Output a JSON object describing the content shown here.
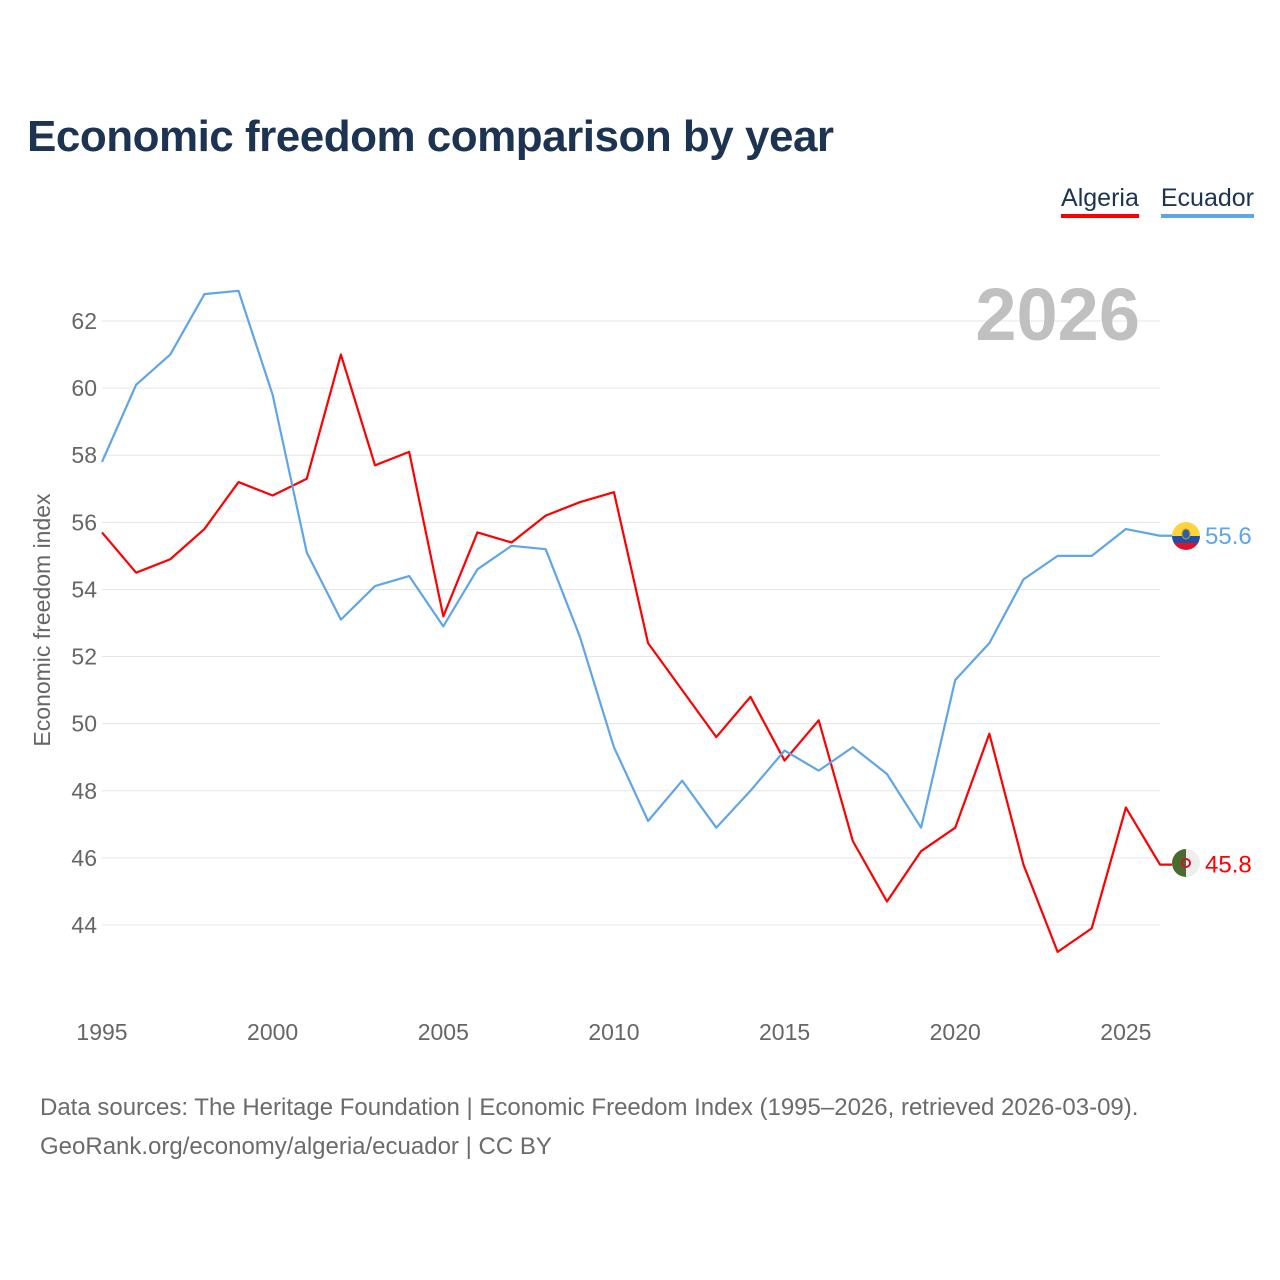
{
  "title": "Economic freedom comparison by year",
  "legend": [
    {
      "label": "Algeria",
      "color": "#ff0000"
    },
    {
      "label": "Ecuador",
      "color": "#60a5ea"
    }
  ],
  "year_watermark": "2026",
  "source_line1": "Data sources: The Heritage Foundation | Economic Freedom Index (1995–2026, retrieved 2026-03-09).",
  "source_line2": "GeoRank.org/economy/algeria/ecuador | CC BY",
  "chart_data": {
    "type": "line",
    "title": "Economic freedom comparison by year",
    "xlabel": "",
    "ylabel": "Economic freedom index",
    "xlim": [
      1995,
      2026
    ],
    "ylim": [
      42.5,
      63.5
    ],
    "x_ticks": [
      1995,
      2000,
      2005,
      2010,
      2015,
      2020,
      2025
    ],
    "y_ticks": [
      44,
      46,
      48,
      50,
      52,
      54,
      56,
      58,
      60,
      62
    ],
    "grid": true,
    "legend_position": "top-right",
    "x": [
      1995,
      1996,
      1997,
      1998,
      1999,
      2000,
      2001,
      2002,
      2003,
      2004,
      2005,
      2006,
      2007,
      2008,
      2009,
      2010,
      2011,
      2012,
      2013,
      2014,
      2015,
      2016,
      2017,
      2018,
      2019,
      2020,
      2021,
      2022,
      2023,
      2024,
      2025,
      2026
    ],
    "series": [
      {
        "name": "Algeria",
        "color": "#ff0000",
        "end_label": "45.8",
        "values": [
          55.7,
          54.5,
          54.9,
          55.8,
          57.2,
          56.8,
          57.3,
          61.0,
          57.7,
          58.1,
          53.2,
          55.7,
          55.4,
          56.2,
          56.6,
          56.9,
          52.4,
          51.0,
          49.6,
          50.8,
          48.9,
          50.1,
          46.5,
          44.7,
          46.2,
          46.9,
          49.7,
          45.8,
          43.2,
          43.9,
          47.5,
          45.8
        ]
      },
      {
        "name": "Ecuador",
        "color": "#60a5ea",
        "end_label": "55.6",
        "values": [
          57.8,
          60.1,
          61.0,
          62.8,
          62.9,
          59.8,
          55.1,
          53.1,
          54.1,
          54.4,
          52.9,
          54.6,
          55.3,
          55.2,
          52.6,
          49.3,
          47.1,
          48.3,
          46.9,
          48.0,
          49.2,
          48.6,
          49.3,
          48.5,
          46.9,
          51.3,
          52.4,
          54.3,
          55.0,
          55.0,
          55.8,
          55.6
        ]
      }
    ]
  }
}
